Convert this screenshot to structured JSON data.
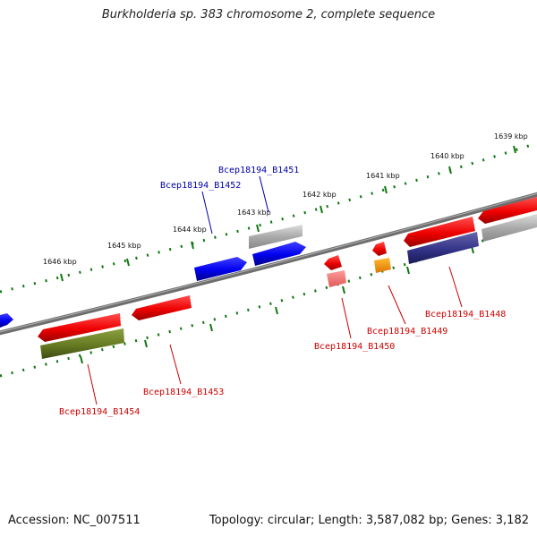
{
  "title": "Burkholderia sp. 383 chromosome 2, complete sequence",
  "footer": {
    "accession": "Accession: NC_007511",
    "topology": "Topology: circular; Length: 3,587,082 bp; Genes: 3,182"
  },
  "ticks": [
    "1639 kbp",
    "1640 kbp",
    "1641 kbp",
    "1642 kbp",
    "1643 kbp",
    "1644 kbp",
    "1645 kbp",
    "1646 kbp"
  ],
  "gene_labels": [
    "Bcep18194_B1451",
    "Bcep18194_B1452",
    "Bcep18194_B1448",
    "Bcep18194_B1449",
    "Bcep18194_B1450",
    "Bcep18194_B1453",
    "Bcep18194_B1454"
  ],
  "colors": {
    "forward_label": "#0000aa",
    "reverse_label": "#cc0000",
    "backbone": "#777777",
    "tick": "#117711"
  }
}
